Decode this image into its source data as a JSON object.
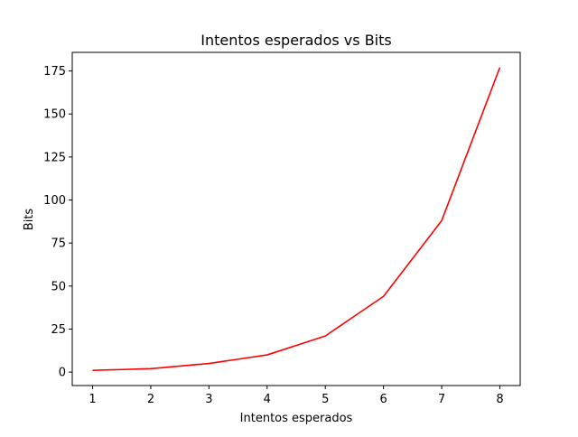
{
  "chart_data": {
    "type": "line",
    "title": "Intentos esperados vs Bits",
    "xlabel": "Intentos esperados",
    "ylabel": "Bits",
    "x": [
      1,
      2,
      3,
      4,
      5,
      6,
      7,
      8
    ],
    "series": [
      {
        "values": [
          1,
          2,
          5,
          10,
          21,
          44,
          88,
          177
        ],
        "color": "#ff0000"
      }
    ],
    "xlim": [
      0.65,
      8.35
    ],
    "ylim": [
      -7.8,
      185.8
    ],
    "xticks": [
      "1",
      "2",
      "3",
      "4",
      "5",
      "6",
      "7",
      "8"
    ],
    "yticks": [
      "0",
      "25",
      "50",
      "75",
      "100",
      "125",
      "150",
      "175"
    ],
    "grid": false,
    "legend": "none"
  }
}
